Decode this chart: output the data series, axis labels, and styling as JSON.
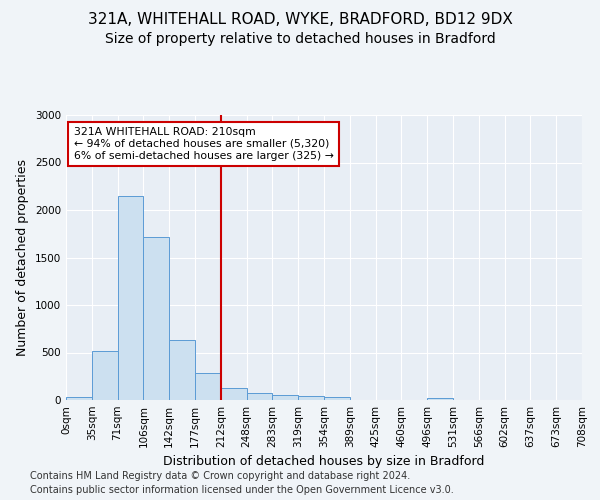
{
  "title_line1": "321A, WHITEHALL ROAD, WYKE, BRADFORD, BD12 9DX",
  "title_line2": "Size of property relative to detached houses in Bradford",
  "xlabel": "Distribution of detached houses by size in Bradford",
  "ylabel": "Number of detached properties",
  "footer_line1": "Contains HM Land Registry data © Crown copyright and database right 2024.",
  "footer_line2": "Contains public sector information licensed under the Open Government Licence v3.0.",
  "annotation_line1": "321A WHITEHALL ROAD: 210sqm",
  "annotation_line2": "← 94% of detached houses are smaller (5,320)",
  "annotation_line3": "6% of semi-detached houses are larger (325) →",
  "bin_labels": [
    "0sqm",
    "35sqm",
    "71sqm",
    "106sqm",
    "142sqm",
    "177sqm",
    "212sqm",
    "248sqm",
    "283sqm",
    "319sqm",
    "354sqm",
    "389sqm",
    "425sqm",
    "460sqm",
    "496sqm",
    "531sqm",
    "566sqm",
    "602sqm",
    "637sqm",
    "673sqm",
    "708sqm"
  ],
  "bar_values": [
    30,
    520,
    2150,
    1720,
    630,
    280,
    130,
    75,
    50,
    40,
    30,
    0,
    0,
    0,
    25,
    0,
    0,
    0,
    0,
    0
  ],
  "bar_color": "#cce0f0",
  "bar_edge_color": "#5b9bd5",
  "redline_x": 6,
  "redline_color": "#cc0000",
  "annotation_box_color": "#cc0000",
  "plot_bg_color": "#e8eef5",
  "fig_bg_color": "#f0f4f8",
  "ylim": [
    0,
    3000
  ],
  "yticks": [
    0,
    500,
    1000,
    1500,
    2000,
    2500,
    3000
  ],
  "grid_color": "#ffffff",
  "title_fontsize": 11,
  "subtitle_fontsize": 10,
  "axis_label_fontsize": 9,
  "tick_fontsize": 7.5,
  "footer_fontsize": 7
}
